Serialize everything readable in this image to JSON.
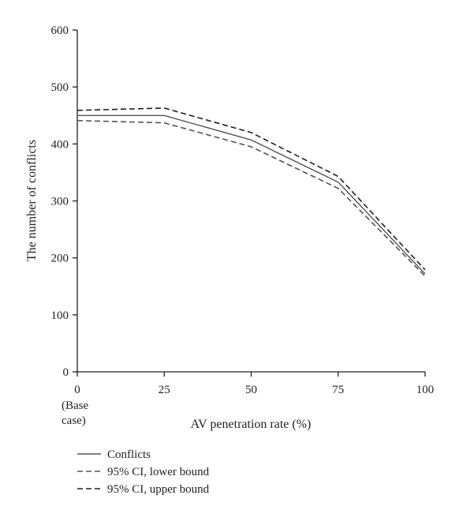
{
  "chart_data": {
    "type": "line",
    "title": "",
    "xlabel": "AV penetration rate (%)",
    "ylabel": "The number of conflicts",
    "x": [
      0,
      25,
      50,
      75,
      100
    ],
    "x_tick_labels": [
      "0",
      "25",
      "50",
      "75",
      "100"
    ],
    "x_tick_sublabels": [
      "(Base",
      "case)"
    ],
    "y_ticks": [
      0,
      100,
      200,
      300,
      400,
      500,
      600
    ],
    "xlim": [
      0,
      100
    ],
    "ylim": [
      0,
      600
    ],
    "grid": false,
    "legend_position": "bottom-left",
    "series": [
      {
        "name": "Conflicts",
        "values": [
          450,
          450,
          407,
          333,
          172
        ],
        "style": "solid",
        "color": "#555555"
      },
      {
        "name": "95% CI, lower bound",
        "values": [
          441,
          437,
          395,
          322,
          168
        ],
        "style": "dashed",
        "color": "#555555"
      },
      {
        "name": "95% CI, upper bound",
        "values": [
          459,
          463,
          420,
          343,
          179
        ],
        "style": "dashed",
        "color": "#231f20"
      }
    ],
    "colors": {
      "axis": "#231f20",
      "text": "#231f20"
    }
  }
}
